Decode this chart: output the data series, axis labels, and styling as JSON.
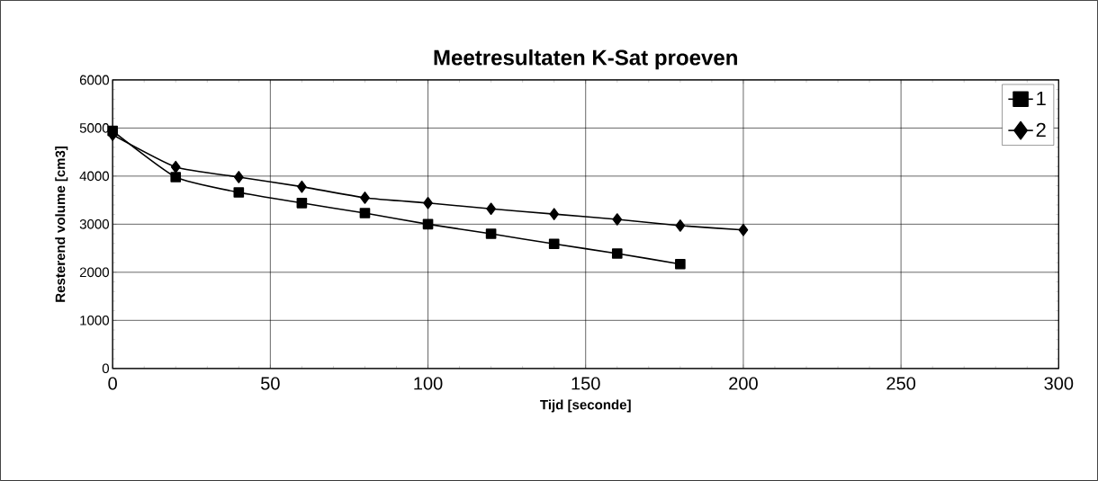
{
  "chart_data": {
    "type": "line",
    "title": "Meetresultaten K-Sat proeven",
    "xlabel": "Tijd [seconde]",
    "ylabel": "Resterend volume [cm3]",
    "xlim": [
      0,
      300
    ],
    "xticks": [
      0,
      50,
      100,
      150,
      200,
      250,
      300
    ],
    "ylim": [
      0,
      6000
    ],
    "yticks": [
      0,
      1000,
      2000,
      3000,
      4000,
      5000,
      6000
    ],
    "grid": true,
    "legend": "top right",
    "line_style": "solid",
    "series": [
      {
        "name": "1",
        "color": "#000000",
        "marker": "square",
        "x": [
          0,
          20,
          40,
          60,
          80,
          100,
          120,
          140,
          160,
          180
        ],
        "values": [
          4940,
          3980,
          3660,
          3440,
          3230,
          3000,
          2800,
          2590,
          2390,
          2170
        ]
      },
      {
        "name": "2",
        "color": "#000000",
        "marker": "diamond",
        "x": [
          0,
          20,
          40,
          60,
          80,
          100,
          120,
          140,
          160,
          180,
          200
        ],
        "values": [
          4860,
          4190,
          3980,
          3780,
          3550,
          3440,
          3320,
          3210,
          3100,
          2970,
          2880
        ]
      }
    ]
  }
}
